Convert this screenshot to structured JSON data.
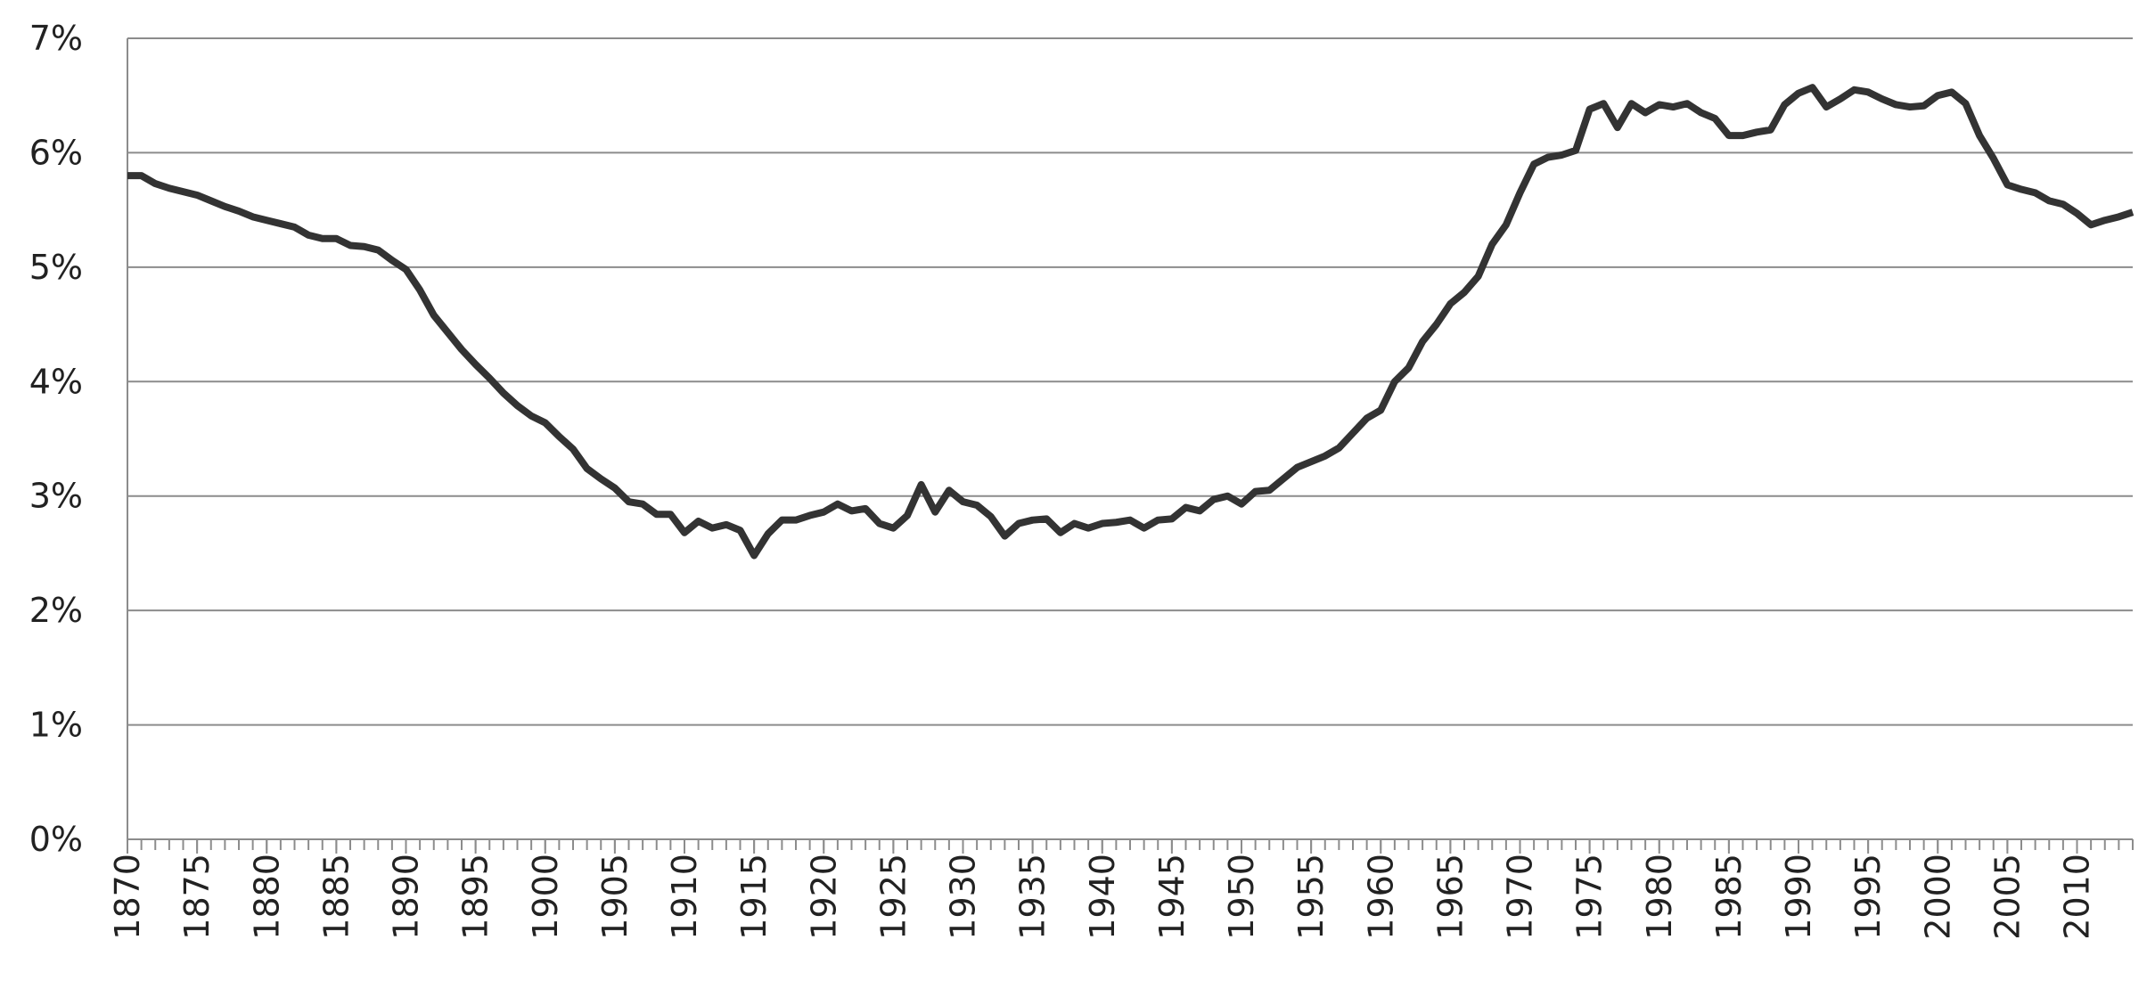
{
  "chart_data": {
    "type": "line",
    "x": [
      1870,
      1871,
      1872,
      1873,
      1874,
      1875,
      1876,
      1877,
      1878,
      1879,
      1880,
      1881,
      1882,
      1883,
      1884,
      1885,
      1886,
      1887,
      1888,
      1889,
      1890,
      1891,
      1892,
      1893,
      1894,
      1895,
      1896,
      1897,
      1898,
      1899,
      1900,
      1901,
      1902,
      1903,
      1904,
      1905,
      1906,
      1907,
      1908,
      1909,
      1910,
      1911,
      1912,
      1913,
      1914,
      1915,
      1916,
      1917,
      1918,
      1919,
      1920,
      1921,
      1922,
      1923,
      1924,
      1925,
      1926,
      1927,
      1928,
      1929,
      1930,
      1931,
      1932,
      1933,
      1934,
      1935,
      1936,
      1937,
      1938,
      1939,
      1940,
      1941,
      1942,
      1943,
      1944,
      1945,
      1946,
      1947,
      1948,
      1949,
      1950,
      1951,
      1952,
      1953,
      1954,
      1955,
      1956,
      1957,
      1958,
      1959,
      1960,
      1961,
      1962,
      1963,
      1964,
      1965,
      1966,
      1967,
      1968,
      1969,
      1970,
      1971,
      1972,
      1973,
      1974,
      1975,
      1976,
      1977,
      1978,
      1979,
      1980,
      1981,
      1982,
      1983,
      1984,
      1985,
      1986,
      1987,
      1988,
      1989,
      1990,
      1991,
      1992,
      1993,
      1994,
      1995,
      1996,
      1997,
      1998,
      1999,
      2000,
      2001,
      2002,
      2003,
      2004,
      2005,
      2006,
      2007,
      2008,
      2009,
      2010,
      2011,
      2012,
      2013,
      2014
    ],
    "series": [
      {
        "color": "#333333",
        "values": [
          5.8,
          5.8,
          5.73,
          5.69,
          5.66,
          5.63,
          5.58,
          5.53,
          5.49,
          5.44,
          5.41,
          5.38,
          5.35,
          5.28,
          5.25,
          5.25,
          5.19,
          5.18,
          5.15,
          5.06,
          4.98,
          4.8,
          4.58,
          4.43,
          4.28,
          4.15,
          4.03,
          3.9,
          3.79,
          3.7,
          3.64,
          3.52,
          3.41,
          3.24,
          3.15,
          3.07,
          2.95,
          2.93,
          2.84,
          2.84,
          2.68,
          2.78,
          2.72,
          2.75,
          2.7,
          2.48,
          2.67,
          2.79,
          2.79,
          2.83,
          2.86,
          2.93,
          2.87,
          2.89,
          2.76,
          2.72,
          2.83,
          3.1,
          2.86,
          3.05,
          2.95,
          2.92,
          2.82,
          2.65,
          2.76,
          2.79,
          2.8,
          2.68,
          2.76,
          2.72,
          2.76,
          2.77,
          2.79,
          2.72,
          2.79,
          2.8,
          2.9,
          2.87,
          2.97,
          3.0,
          2.93,
          3.04,
          3.05,
          3.15,
          3.25,
          3.3,
          3.35,
          3.42,
          3.55,
          3.68,
          3.75,
          4.0,
          4.12,
          4.35,
          4.5,
          4.68,
          4.78,
          4.92,
          5.2,
          5.37,
          5.65,
          5.9,
          5.96,
          5.98,
          6.02,
          6.38,
          6.43,
          6.22,
          6.43,
          6.35,
          6.42,
          6.4,
          6.43,
          6.35,
          6.3,
          6.15,
          6.15,
          6.18,
          6.2,
          6.42,
          6.52,
          6.57,
          6.4,
          6.47,
          6.55,
          6.53,
          6.47,
          6.42,
          6.4,
          6.41,
          6.5,
          6.53,
          6.43,
          6.15,
          5.95,
          5.72,
          5.68,
          5.65,
          5.58,
          5.55,
          5.47,
          5.37,
          5.41,
          5.44,
          5.48
        ]
      }
    ],
    "xlim": [
      1870,
      2014
    ],
    "xticks": [
      1870,
      1875,
      1880,
      1885,
      1890,
      1895,
      1900,
      1905,
      1910,
      1915,
      1920,
      1925,
      1930,
      1935,
      1940,
      1945,
      1950,
      1955,
      1960,
      1965,
      1970,
      1975,
      1980,
      1985,
      1990,
      1995,
      2000,
      2005,
      2010
    ],
    "ylim": [
      0,
      7
    ],
    "yticks": [
      {
        "value": 0,
        "label": "0%"
      },
      {
        "value": 1,
        "label": "1%"
      },
      {
        "value": 2,
        "label": "2%"
      },
      {
        "value": 3,
        "label": "3%"
      },
      {
        "value": 4,
        "label": "4%"
      },
      {
        "value": 5,
        "label": "5%"
      },
      {
        "value": 6,
        "label": "6%"
      },
      {
        "value": 7,
        "label": "7%"
      }
    ],
    "grid": true
  }
}
